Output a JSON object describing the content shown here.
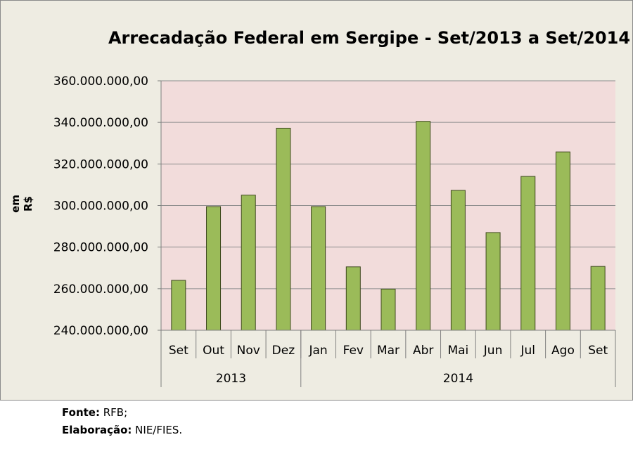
{
  "chart_data": {
    "type": "bar",
    "title": "Arrecadação Federal em Sergipe - Set/2013 a Set/2014",
    "ylabel": "em R$",
    "xlabel": "",
    "ylim": [
      240000000,
      360000000
    ],
    "ytick_step": 20000000,
    "yticks": [
      "240.000.000,00",
      "260.000.000,00",
      "280.000.000,00",
      "300.000.000,00",
      "320.000.000,00",
      "340.000.000,00",
      "360.000.000,00"
    ],
    "categories": [
      "Set",
      "Out",
      "Nov",
      "Dez",
      "Jan",
      "Fev",
      "Mar",
      "Abr",
      "Mai",
      "Jun",
      "Jul",
      "Ago",
      "Set"
    ],
    "groups": [
      {
        "label": "2013",
        "count": 4
      },
      {
        "label": "2014",
        "count": 9
      }
    ],
    "values": [
      264000000,
      299500000,
      305000000,
      337200000,
      299500000,
      270500000,
      259800000,
      340500000,
      307300000,
      287000000,
      314000000,
      325800000,
      270700000
    ],
    "grid": true,
    "colors": {
      "bar": "#9bbb59",
      "bar_stroke": "#3f4a1f",
      "plot_bg": "#f2dcdb",
      "grid": "#8c8c8c"
    }
  },
  "footer": {
    "source_label": "Fonte:",
    "source_value": "RFB;",
    "credit_label": "Elaboração:",
    "credit_value": "NIE/FIES."
  }
}
